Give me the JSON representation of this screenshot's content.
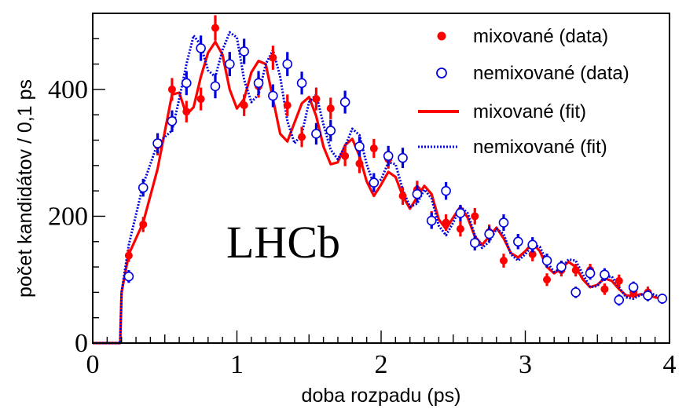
{
  "chart_data": {
    "type": "scatter",
    "xlabel": "doba rozpadu (ps)",
    "ylabel": "počet kandidátov / 0,1 ps",
    "xlim": [
      0,
      4
    ],
    "ylim": [
      0,
      520
    ],
    "x_ticks": [
      "0",
      "1",
      "2",
      "3",
      "4"
    ],
    "y_ticks": [
      "0",
      "200",
      "400"
    ],
    "x_tick_values": [
      0,
      1,
      2,
      3,
      4
    ],
    "y_tick_values": [
      0,
      200,
      400
    ],
    "grid": false,
    "legend_position": "top-right",
    "annotation": "LHCb",
    "colors": {
      "mixed": "#ff0000",
      "unmixed": "#0000dd"
    },
    "series": [
      {
        "name": "mixované (data)",
        "kind": "points-filled",
        "x": [
          0.25,
          0.35,
          0.45,
          0.55,
          0.65,
          0.75,
          0.85,
          0.95,
          1.05,
          1.15,
          1.25,
          1.35,
          1.45,
          1.55,
          1.65,
          1.75,
          1.85,
          1.95,
          2.05,
          2.15,
          2.25,
          2.35,
          2.45,
          2.55,
          2.65,
          2.75,
          2.85,
          2.95,
          3.05,
          3.15,
          3.25,
          3.35,
          3.45,
          3.55,
          3.65,
          3.75,
          3.85,
          3.95
        ],
        "y": [
          138,
          187,
          312,
          400,
          365,
          385,
          497,
          440,
          375,
          405,
          450,
          375,
          325,
          385,
          370,
          295,
          283,
          307,
          290,
          232,
          242,
          195,
          190,
          180,
          200,
          175,
          130,
          160,
          140,
          100,
          115,
          115,
          115,
          85,
          98,
          80,
          80,
          70
        ],
        "err": [
          10,
          12,
          16,
          18,
          17,
          18,
          20,
          19,
          17,
          18,
          19,
          17,
          16,
          18,
          17,
          16,
          15,
          15,
          15,
          14,
          14,
          13,
          13,
          12,
          13,
          12,
          11,
          12,
          11,
          10,
          10,
          10,
          10,
          9,
          10,
          9,
          9,
          8
        ]
      },
      {
        "name": "nemixované (data)",
        "kind": "points-open",
        "x": [
          0.25,
          0.35,
          0.45,
          0.55,
          0.65,
          0.75,
          0.85,
          0.95,
          1.05,
          1.15,
          1.25,
          1.35,
          1.45,
          1.55,
          1.65,
          1.75,
          1.85,
          1.95,
          2.05,
          2.15,
          2.25,
          2.35,
          2.45,
          2.55,
          2.65,
          2.75,
          2.85,
          2.95,
          3.05,
          3.15,
          3.25,
          3.35,
          3.45,
          3.55,
          3.65,
          3.75,
          3.85,
          3.95
        ],
        "y": [
          105,
          245,
          315,
          350,
          410,
          465,
          405,
          440,
          460,
          410,
          390,
          440,
          410,
          330,
          335,
          380,
          310,
          253,
          295,
          292,
          235,
          193,
          240,
          205,
          158,
          172,
          190,
          160,
          155,
          130,
          120,
          80,
          110,
          108,
          68,
          88,
          75,
          70
        ],
        "err": [
          10,
          14,
          16,
          17,
          19,
          20,
          19,
          19,
          20,
          19,
          18,
          19,
          18,
          17,
          17,
          18,
          16,
          15,
          16,
          16,
          14,
          13,
          14,
          13,
          12,
          12,
          13,
          12,
          12,
          11,
          10,
          9,
          10,
          10,
          9,
          9,
          9,
          8
        ]
      },
      {
        "name": "mixované (fit)",
        "kind": "line-solid",
        "x": [
          0,
          0.19,
          0.2,
          0.25,
          0.35,
          0.45,
          0.55,
          0.6,
          0.65,
          0.7,
          0.75,
          0.8,
          0.85,
          0.9,
          0.95,
          1.0,
          1.05,
          1.1,
          1.15,
          1.2,
          1.25,
          1.3,
          1.35,
          1.4,
          1.45,
          1.5,
          1.55,
          1.6,
          1.65,
          1.7,
          1.75,
          1.8,
          1.85,
          1.9,
          1.95,
          2.0,
          2.05,
          2.1,
          2.15,
          2.2,
          2.25,
          2.3,
          2.35,
          2.4,
          2.45,
          2.5,
          2.55,
          2.6,
          2.65,
          2.7,
          2.75,
          2.8,
          2.85,
          2.9,
          2.95,
          3.0,
          3.05,
          3.1,
          3.15,
          3.2,
          3.25,
          3.3,
          3.35,
          3.4,
          3.45,
          3.5,
          3.55,
          3.6,
          3.65,
          3.7,
          3.75,
          3.8,
          3.85,
          3.9,
          3.95
        ],
        "y": [
          0,
          0,
          80,
          140,
          190,
          275,
          392,
          395,
          360,
          372,
          420,
          458,
          475,
          455,
          400,
          370,
          385,
          427,
          445,
          440,
          385,
          330,
          318,
          348,
          378,
          388,
          358,
          310,
          282,
          285,
          312,
          322,
          295,
          255,
          232,
          250,
          270,
          262,
          232,
          212,
          230,
          248,
          235,
          195,
          180,
          198,
          215,
          198,
          168,
          155,
          168,
          182,
          165,
          142,
          135,
          145,
          158,
          145,
          120,
          110,
          118,
          128,
          120,
          100,
          88,
          92,
          102,
          98,
          85,
          75,
          74,
          77,
          76,
          72,
          70
        ],
        "err": []
      },
      {
        "name": "nemixované (fit)",
        "kind": "line-dotted",
        "x": [
          0,
          0.19,
          0.2,
          0.25,
          0.35,
          0.45,
          0.55,
          0.6,
          0.65,
          0.7,
          0.75,
          0.8,
          0.85,
          0.9,
          0.95,
          1.0,
          1.05,
          1.1,
          1.15,
          1.2,
          1.25,
          1.3,
          1.35,
          1.4,
          1.45,
          1.5,
          1.55,
          1.6,
          1.65,
          1.7,
          1.75,
          1.8,
          1.85,
          1.9,
          1.95,
          2.0,
          2.05,
          2.1,
          2.15,
          2.2,
          2.25,
          2.3,
          2.35,
          2.4,
          2.45,
          2.5,
          2.55,
          2.6,
          2.65,
          2.7,
          2.75,
          2.8,
          2.85,
          2.9,
          2.95,
          3.0,
          3.05,
          3.1,
          3.15,
          3.2,
          3.25,
          3.3,
          3.35,
          3.4,
          3.45,
          3.5,
          3.55,
          3.6,
          3.65,
          3.7,
          3.75,
          3.8,
          3.85,
          3.9,
          3.95
        ],
        "y": [
          0,
          0,
          80,
          155,
          250,
          315,
          335,
          385,
          440,
          485,
          470,
          430,
          420,
          462,
          490,
          482,
          415,
          380,
          392,
          440,
          462,
          420,
          350,
          315,
          330,
          380,
          392,
          345,
          305,
          290,
          310,
          338,
          328,
          282,
          250,
          258,
          285,
          282,
          242,
          215,
          220,
          242,
          228,
          185,
          170,
          190,
          215,
          205,
          170,
          150,
          160,
          180,
          172,
          140,
          130,
          140,
          155,
          152,
          128,
          112,
          118,
          132,
          130,
          108,
          88,
          90,
          105,
          105,
          88,
          72,
          70,
          76,
          80,
          76,
          70
        ],
        "err": []
      }
    ]
  }
}
